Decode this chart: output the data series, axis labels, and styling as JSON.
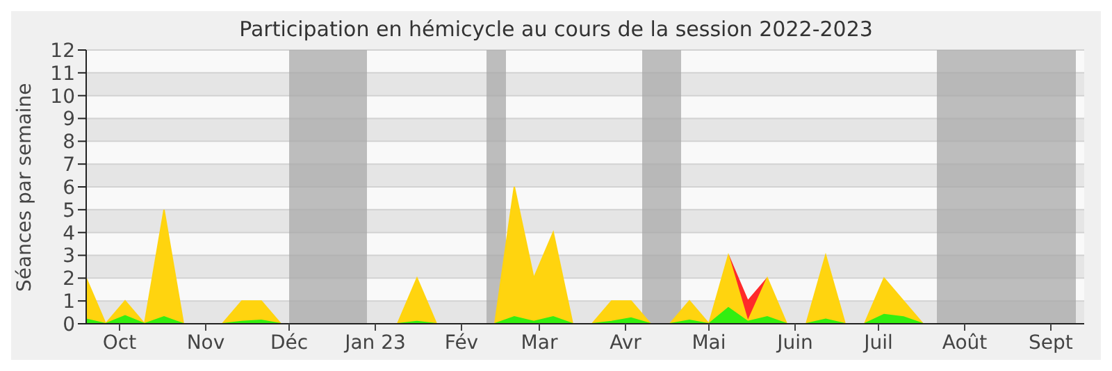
{
  "chart_data": {
    "type": "area",
    "title": "Participation en hémicycle au cours de la session 2022-2023",
    "ylabel": "Séances par semaine",
    "x": [
      "2022-09-19",
      "2022-09-26",
      "2022-10-03",
      "2022-10-10",
      "2022-10-17",
      "2022-10-24",
      "2022-10-31",
      "2022-11-07",
      "2022-11-14",
      "2022-11-21",
      "2022-11-28",
      "2022-12-05",
      "2022-12-12",
      "2022-12-19",
      "2022-12-26",
      "2023-01-02",
      "2023-01-09",
      "2023-01-16",
      "2023-01-23",
      "2023-01-30",
      "2023-02-06",
      "2023-02-13",
      "2023-02-20",
      "2023-02-27",
      "2023-03-06",
      "2023-03-13",
      "2023-03-20",
      "2023-03-27",
      "2023-04-03",
      "2023-04-10",
      "2023-04-17",
      "2023-04-24",
      "2023-05-01",
      "2023-05-08",
      "2023-05-15",
      "2023-05-22",
      "2023-05-29",
      "2023-06-05",
      "2023-06-12",
      "2023-06-19",
      "2023-06-26",
      "2023-07-03",
      "2023-07-10",
      "2023-07-17",
      "2023-07-24",
      "2023-07-31",
      "2023-08-07",
      "2023-08-14",
      "2023-08-21",
      "2023-08-28",
      "2023-09-04",
      "2023-09-11"
    ],
    "series": [
      {
        "color": "#ff2a2a",
        "values": [
          null,
          null,
          null,
          null,
          null,
          null,
          null,
          null,
          null,
          null,
          null,
          null,
          null,
          null,
          null,
          null,
          null,
          null,
          null,
          null,
          null,
          null,
          null,
          null,
          null,
          null,
          null,
          null,
          null,
          null,
          null,
          null,
          null,
          3,
          1,
          2,
          null,
          null,
          null,
          null,
          null,
          null,
          null,
          null,
          null,
          null,
          null,
          null,
          null,
          null,
          null,
          null
        ]
      },
      {
        "color": "#ffd40f",
        "values": [
          2,
          0,
          1,
          0,
          5,
          0,
          0,
          0,
          1,
          1,
          0,
          0,
          0,
          0,
          0,
          0,
          0,
          2,
          0,
          0,
          0,
          0,
          6,
          2,
          4,
          0,
          0,
          1,
          1,
          0,
          0,
          1,
          0,
          3,
          0.1,
          2,
          0,
          0,
          3,
          0,
          0,
          2,
          1,
          0,
          0,
          0,
          0,
          0,
          0,
          0,
          0,
          0
        ]
      },
      {
        "color": "#33ee11",
        "values": [
          0.2,
          0,
          0.35,
          0,
          0.3,
          0,
          0,
          0,
          0.1,
          0.15,
          0,
          0,
          0,
          0,
          0,
          0,
          0,
          0.1,
          0,
          0,
          0,
          0,
          0.3,
          0.1,
          0.3,
          0,
          0,
          0.1,
          0.25,
          0,
          0,
          0.15,
          0,
          0.7,
          0.1,
          0.3,
          0,
          0,
          0.2,
          0,
          0,
          0.4,
          0.3,
          0,
          0,
          0,
          0,
          0,
          0,
          0,
          0,
          0
        ]
      }
    ],
    "xlim": [
      "2022-09-19",
      "2023-09-13"
    ],
    "xticks": [
      {
        "value": "2022-10-01",
        "label": "Oct"
      },
      {
        "value": "2022-11-01",
        "label": "Nov"
      },
      {
        "value": "2022-12-01",
        "label": "Déc"
      },
      {
        "value": "2023-01-01",
        "label": "Jan 23"
      },
      {
        "value": "2023-02-01",
        "label": "Fév"
      },
      {
        "value": "2023-03-01",
        "label": "Mar"
      },
      {
        "value": "2023-04-01",
        "label": "Avr"
      },
      {
        "value": "2023-05-01",
        "label": "Mai"
      },
      {
        "value": "2023-06-01",
        "label": "Juin"
      },
      {
        "value": "2023-07-01",
        "label": "Juil"
      },
      {
        "value": "2023-08-01",
        "label": "Août"
      },
      {
        "value": "2023-09-01",
        "label": "Sept"
      }
    ],
    "ylim": [
      0,
      12
    ],
    "yticks": [
      0,
      1,
      2,
      3,
      4,
      5,
      6,
      7,
      8,
      9,
      10,
      11,
      12
    ],
    "bands": [
      {
        "axis": "x",
        "from": "2022-12-01",
        "to": "2022-12-29",
        "color": "#a8a8a8"
      },
      {
        "axis": "x",
        "from": "2023-02-10",
        "to": "2023-02-17",
        "color": "#a8a8a8"
      },
      {
        "axis": "x",
        "from": "2023-04-07",
        "to": "2023-04-21",
        "color": "#a8a8a8"
      },
      {
        "axis": "x",
        "from": "2023-07-22",
        "to": "2023-09-10",
        "color": "#a8a8a8"
      }
    ],
    "grid": "y",
    "legend": false
  }
}
